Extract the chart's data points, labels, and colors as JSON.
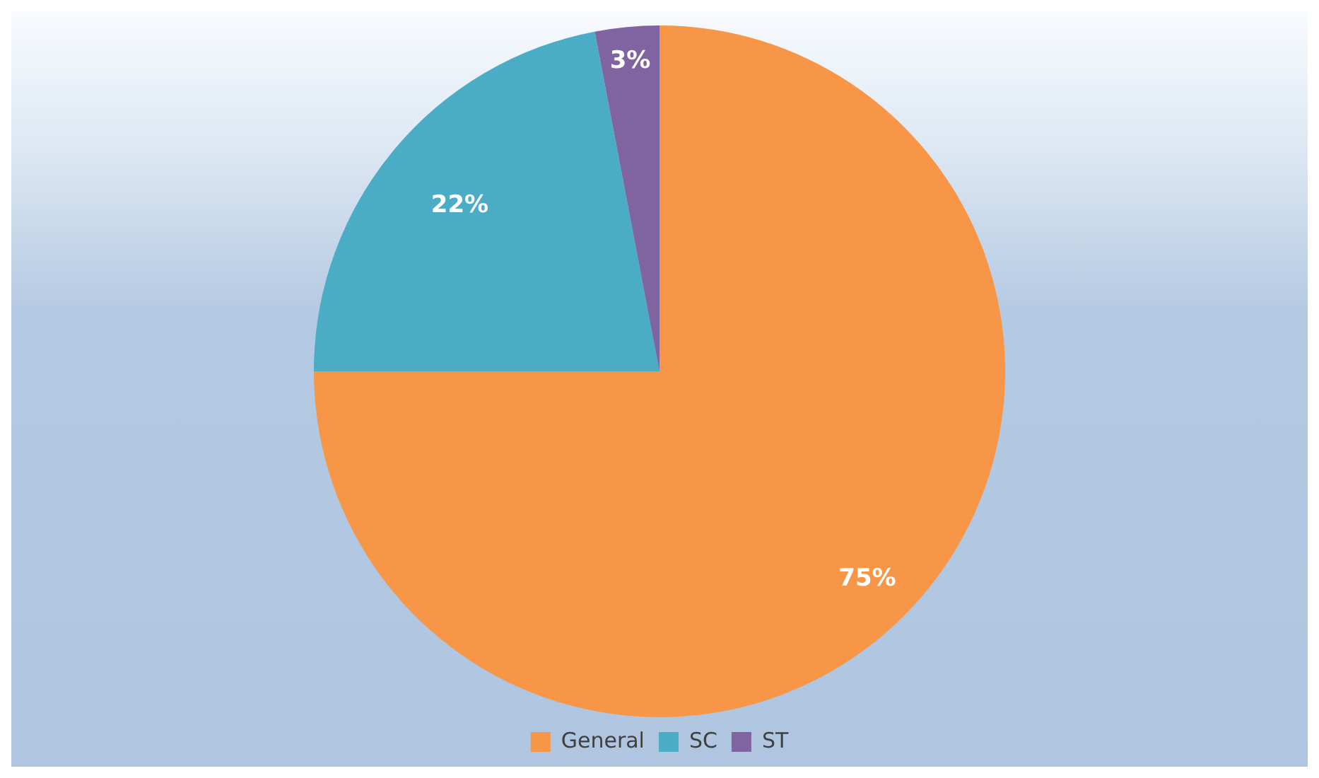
{
  "chart_data": {
    "type": "pie",
    "categories": [
      "General",
      "SC",
      "ST"
    ],
    "values": [
      75,
      22,
      3
    ],
    "colors": [
      "#f79646",
      "#4bacc6",
      "#8064a2"
    ],
    "value_labels": [
      "75%",
      "22%",
      "3%"
    ],
    "legend": "bottom"
  }
}
